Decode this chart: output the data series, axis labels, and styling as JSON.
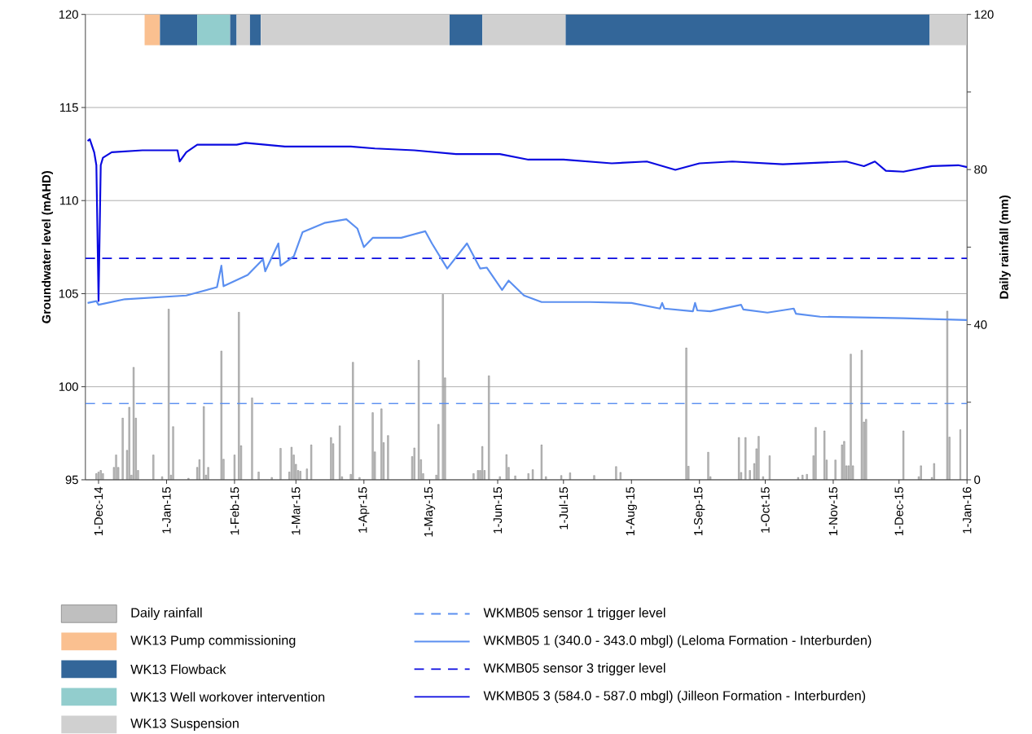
{
  "chart_data": {
    "type": "line",
    "xlabel": null,
    "ylabel": "Groundwater level (mAHD)",
    "y2label": "Daily rainfall (mm)",
    "xlim": [
      "2014-11-25",
      "2016-01-01"
    ],
    "xticks": [
      {
        "value": "2014-12-01",
        "label": "1-Dec-14"
      },
      {
        "value": "2015-01-01",
        "label": "1-Jan-15"
      },
      {
        "value": "2015-02-01",
        "label": "1-Feb-15"
      },
      {
        "value": "2015-03-01",
        "label": "1-Mar-15"
      },
      {
        "value": "2015-04-01",
        "label": "1-Apr-15"
      },
      {
        "value": "2015-05-01",
        "label": "1-May-15"
      },
      {
        "value": "2015-06-01",
        "label": "1-Jun-15"
      },
      {
        "value": "2015-07-01",
        "label": "1-Jul-15"
      },
      {
        "value": "2015-08-01",
        "label": "1-Aug-15"
      },
      {
        "value": "2015-09-01",
        "label": "1-Sep-15"
      },
      {
        "value": "2015-10-01",
        "label": "1-Oct-15"
      },
      {
        "value": "2015-11-01",
        "label": "1-Nov-15"
      },
      {
        "value": "2015-12-01",
        "label": "1-Dec-15"
      },
      {
        "value": "2016-01-01",
        "label": "1-Jan-16"
      }
    ],
    "ylim": [
      95,
      120
    ],
    "yticks": [
      95,
      100,
      105,
      110,
      115,
      120
    ],
    "y2lim": [
      0,
      120
    ],
    "y2ticks": [
      0,
      {
        "value": 20,
        "label": null
      },
      40,
      {
        "value": 60,
        "label": null
      },
      80,
      {
        "value": 100,
        "label": null
      },
      120
    ],
    "grid": "y",
    "legend": "bottom",
    "marker": "none",
    "series": [
      {
        "name": "Daily rainfall",
        "type": "bar",
        "axis": "y2",
        "color": "#bfbfbf",
        "x": [
          "2014-11-30",
          "2014-12-01",
          "2014-12-02",
          "2014-12-03",
          "2014-12-08",
          "2014-12-09",
          "2014-12-10",
          "2014-12-12",
          "2014-12-14",
          "2014-12-15",
          "2014-12-16",
          "2014-12-17",
          "2014-12-18",
          "2014-12-19",
          "2014-12-26",
          "2014-12-30",
          "2015-01-02",
          "2015-01-03",
          "2015-01-04",
          "2015-01-11",
          "2015-01-15",
          "2015-01-16",
          "2015-01-18",
          "2015-01-19",
          "2015-01-20",
          "2015-01-26",
          "2015-01-27",
          "2015-02-01",
          "2015-02-03",
          "2015-02-04",
          "2015-02-09",
          "2015-02-12",
          "2015-02-18",
          "2015-02-22",
          "2015-02-26",
          "2015-02-27",
          "2015-02-28",
          "2015-03-01",
          "2015-03-02",
          "2015-03-03",
          "2015-03-06",
          "2015-03-08",
          "2015-03-17",
          "2015-03-18",
          "2015-03-21",
          "2015-03-22",
          "2015-03-26",
          "2015-03-27",
          "2015-03-30",
          "2015-04-05",
          "2015-04-06",
          "2015-04-09",
          "2015-04-10",
          "2015-04-12",
          "2015-04-23",
          "2015-04-24",
          "2015-04-26",
          "2015-04-27",
          "2015-04-28",
          "2015-05-04",
          "2015-05-05",
          "2015-05-07",
          "2015-05-08",
          "2015-05-21",
          "2015-05-23",
          "2015-05-24",
          "2015-05-25",
          "2015-05-26",
          "2015-05-28",
          "2015-06-02",
          "2015-06-05",
          "2015-06-06",
          "2015-06-09",
          "2015-06-15",
          "2015-06-17",
          "2015-06-21",
          "2015-06-23",
          "2015-06-30",
          "2015-07-04",
          "2015-07-15",
          "2015-07-25",
          "2015-07-27",
          "2015-08-26",
          "2015-08-27",
          "2015-09-05",
          "2015-09-06",
          "2015-09-19",
          "2015-09-20",
          "2015-09-22",
          "2015-09-24",
          "2015-09-26",
          "2015-09-27",
          "2015-09-28",
          "2015-09-30",
          "2015-10-03",
          "2015-10-16",
          "2015-10-18",
          "2015-10-20",
          "2015-10-23",
          "2015-10-24",
          "2015-10-28",
          "2015-10-29",
          "2015-11-02",
          "2015-11-05",
          "2015-11-06",
          "2015-11-07",
          "2015-11-08",
          "2015-11-09",
          "2015-11-10",
          "2015-11-14",
          "2015-11-15",
          "2015-11-16",
          "2015-12-03",
          "2015-12-10",
          "2015-12-11",
          "2015-12-16",
          "2015-12-17",
          "2015-12-23",
          "2015-12-24",
          "2015-12-29"
        ],
        "values": [
          1.6,
          2,
          2.4,
          1.6,
          3.2,
          6.4,
          3.2,
          15.9,
          7.6,
          18.7,
          1.2,
          29,
          15.9,
          2.4,
          6.4,
          0.8,
          44,
          1.2,
          13.7,
          0.4,
          3.2,
          5.2,
          18.9,
          1.2,
          3.2,
          33.2,
          5.3,
          6.4,
          43.2,
          8.8,
          21.1,
          2,
          0.6,
          8.1,
          2,
          8.4,
          6.4,
          4,
          2.4,
          2.2,
          2.8,
          9,
          10.9,
          9.3,
          13.9,
          0.8,
          1.4,
          30.3,
          0.6,
          17.3,
          7.2,
          18.3,
          9.6,
          11.4,
          6,
          8.2,
          30.8,
          5.2,
          1.6,
          1.2,
          14.3,
          47.8,
          26.3,
          1.6,
          2.4,
          2.4,
          8.6,
          2.4,
          26.8,
          0.8,
          6.5,
          3.2,
          1,
          1.6,
          2.6,
          9,
          0.8,
          1.1,
          1.8,
          1.1,
          3.4,
          1.9,
          34,
          3.5,
          7.1,
          0.8,
          10.9,
          1.9,
          10.9,
          2.4,
          4.2,
          8,
          11.2,
          0.8,
          6.2,
          0.6,
          1.2,
          1.4,
          6.2,
          13.5,
          12.6,
          5.1,
          5.1,
          9,
          9.9,
          3.6,
          3.6,
          32.4,
          3.6,
          33.4,
          14.9,
          15.6,
          12.6,
          0.8,
          3.6,
          0.6,
          4.2,
          43.5,
          11,
          12.9
        ]
      },
      {
        "name": "WKMB05 1 (340.0 - 343.0 mbgl) (Leloma Formation - Interburden)",
        "color": "#5b8ff0",
        "line_style": "solid",
        "x": [
          "2014-11-26",
          "2014-11-30",
          "2014-12-01",
          "2014-12-13",
          "2015-01-10",
          "2015-01-24",
          "2015-01-26",
          "2015-01-27",
          "2015-02-07",
          "2015-02-14",
          "2015-02-15",
          "2015-02-21",
          "2015-02-22",
          "2015-02-28",
          "2015-03-04",
          "2015-03-14",
          "2015-03-24",
          "2015-03-29",
          "2015-04-01",
          "2015-04-05",
          "2015-04-18",
          "2015-04-29",
          "2015-05-02",
          "2015-05-09",
          "2015-05-18",
          "2015-05-24",
          "2015-05-27",
          "2015-06-03",
          "2015-06-06",
          "2015-06-13",
          "2015-06-21",
          "2015-07-13",
          "2015-08-01",
          "2015-08-14",
          "2015-08-15",
          "2015-08-16",
          "2015-08-29",
          "2015-08-30",
          "2015-08-31",
          "2015-09-06",
          "2015-09-20",
          "2015-09-21",
          "2015-10-02",
          "2015-10-14",
          "2015-10-15",
          "2015-10-26",
          "2015-12-03",
          "2016-01-01"
        ],
        "values": [
          104.5,
          104.6,
          104.4,
          104.7,
          104.9,
          105.35,
          106.5,
          105.4,
          106.0,
          106.85,
          106.2,
          107.7,
          106.5,
          107.0,
          108.3,
          108.8,
          109.0,
          108.5,
          107.5,
          108.0,
          108.0,
          108.35,
          107.7,
          106.35,
          107.7,
          106.35,
          106.4,
          105.2,
          105.7,
          104.9,
          104.55,
          104.55,
          104.5,
          104.2,
          104.5,
          104.2,
          104.05,
          104.5,
          104.1,
          104.05,
          104.4,
          104.15,
          103.98,
          104.2,
          103.92,
          103.76,
          103.68,
          103.58
        ]
      },
      {
        "name": "WKMB05 3 (584.0 - 587.0 mbgl) (Jilleon Formation - Interburden)",
        "color": "#0a0ae0",
        "line_style": "solid",
        "x": [
          "2014-11-26",
          "2014-11-27",
          "2014-11-29",
          "2014-11-30",
          "2014-12-01",
          "2014-12-02",
          "2014-12-03",
          "2014-12-07",
          "2014-12-21",
          "2015-01-06",
          "2015-01-07",
          "2015-01-10",
          "2015-01-15",
          "2015-02-02",
          "2015-02-06",
          "2015-02-24",
          "2015-03-26",
          "2015-04-06",
          "2015-04-24",
          "2015-05-13",
          "2015-06-02",
          "2015-06-15",
          "2015-07-01",
          "2015-07-23",
          "2015-08-08",
          "2015-08-21",
          "2015-09-01",
          "2015-09-16",
          "2015-10-09",
          "2015-11-07",
          "2015-11-15",
          "2015-11-20",
          "2015-11-25",
          "2015-12-03",
          "2015-12-16",
          "2015-12-28",
          "2016-01-01"
        ],
        "values": [
          113.2,
          113.3,
          112.6,
          111.9,
          104.6,
          111.9,
          112.3,
          112.6,
          112.7,
          112.7,
          112.1,
          112.6,
          113.0,
          113.0,
          113.1,
          112.9,
          112.9,
          112.8,
          112.7,
          112.5,
          112.5,
          112.2,
          112.2,
          112.0,
          112.1,
          111.65,
          112.0,
          112.1,
          111.95,
          112.1,
          111.85,
          112.1,
          111.6,
          111.55,
          111.85,
          111.9,
          111.8
        ]
      }
    ],
    "ref_lines": [
      {
        "axis": "y",
        "value": 99.1,
        "label": "WKMB05 sensor 1 trigger level",
        "color": "#5b8ff0",
        "line_style": "dashed"
      },
      {
        "axis": "y",
        "value": 106.9,
        "label": "WKMB05 sensor 3 trigger level",
        "color": "#0a0ae0",
        "line_style": "dashed"
      }
    ],
    "bands": [
      {
        "axis": "x",
        "from": "2014-12-22",
        "to": "2014-12-29",
        "label": "WK13 Pump commissioning",
        "color": "#fac090"
      },
      {
        "axis": "x",
        "from": "2014-12-29",
        "to": "2015-01-15",
        "label": "WK13 Flowback",
        "color": "#336699"
      },
      {
        "axis": "x",
        "from": "2015-01-15",
        "to": "2015-01-30",
        "label": "WK13 Well workover intervention",
        "color": "#92cdcd"
      },
      {
        "axis": "x",
        "from": "2015-01-30",
        "to": "2015-02-02",
        "color": "#336699"
      },
      {
        "axis": "x",
        "from": "2015-02-02",
        "to": "2015-02-08",
        "label": "WK13 Suspension",
        "color": "#d0d0d0"
      },
      {
        "axis": "x",
        "from": "2015-02-08",
        "to": "2015-02-13",
        "color": "#336699"
      },
      {
        "axis": "x",
        "from": "2015-02-13",
        "to": "2015-05-10",
        "color": "#d0d0d0"
      },
      {
        "axis": "x",
        "from": "2015-05-10",
        "to": "2015-05-25",
        "color": "#336699"
      },
      {
        "axis": "x",
        "from": "2015-05-25",
        "to": "2015-07-02",
        "color": "#d0d0d0"
      },
      {
        "axis": "x",
        "from": "2015-07-02",
        "to": "2015-12-15",
        "color": "#336699"
      },
      {
        "axis": "x",
        "from": "2015-12-15",
        "to": "2016-01-01",
        "color": "#d0d0d0"
      }
    ]
  }
}
